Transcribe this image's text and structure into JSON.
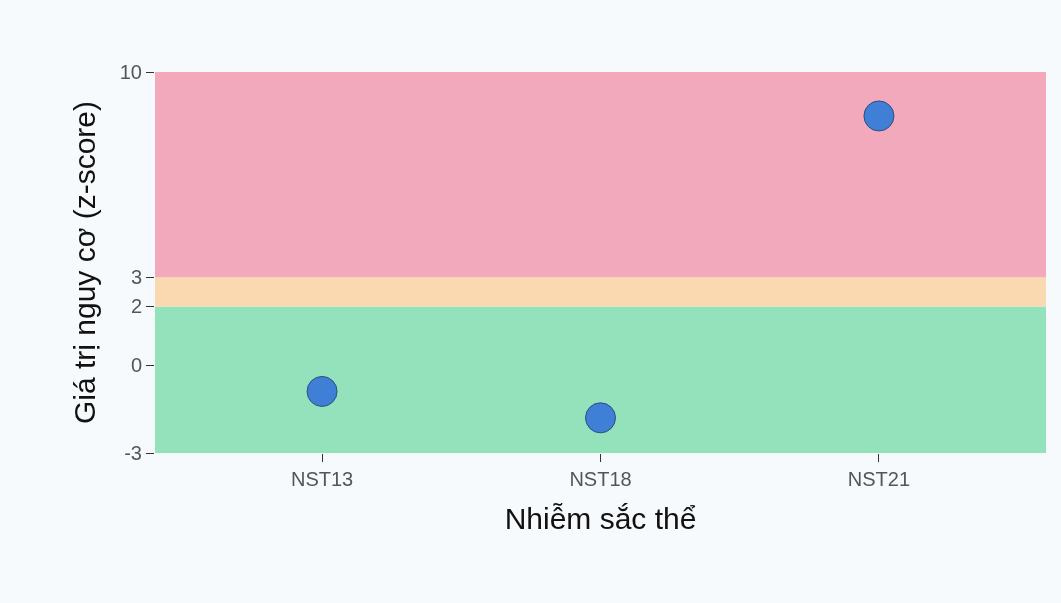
{
  "chart_data": {
    "type": "scatter",
    "xlabel": "Nhiễm sắc thể",
    "ylabel": "Giá trị nguy cơ (z-score)",
    "categories": [
      "NST13",
      "NST18",
      "NST21"
    ],
    "series": [
      {
        "color": "#3f7fd6",
        "values": [
          -0.9,
          -1.8,
          8.5
        ]
      }
    ],
    "ylim": [
      -3,
      10
    ],
    "yticks": [
      -3,
      0,
      2,
      3,
      10
    ],
    "marker": "circle",
    "grid": false,
    "bands": [
      {
        "axis": "y",
        "from": -3,
        "to": 2,
        "color": "#93e2bc"
      },
      {
        "axis": "y",
        "from": 2,
        "to": 3,
        "color": "#fbd9b0"
      },
      {
        "axis": "y",
        "from": 3,
        "to": 10,
        "color": "#f2a9bb"
      }
    ]
  }
}
